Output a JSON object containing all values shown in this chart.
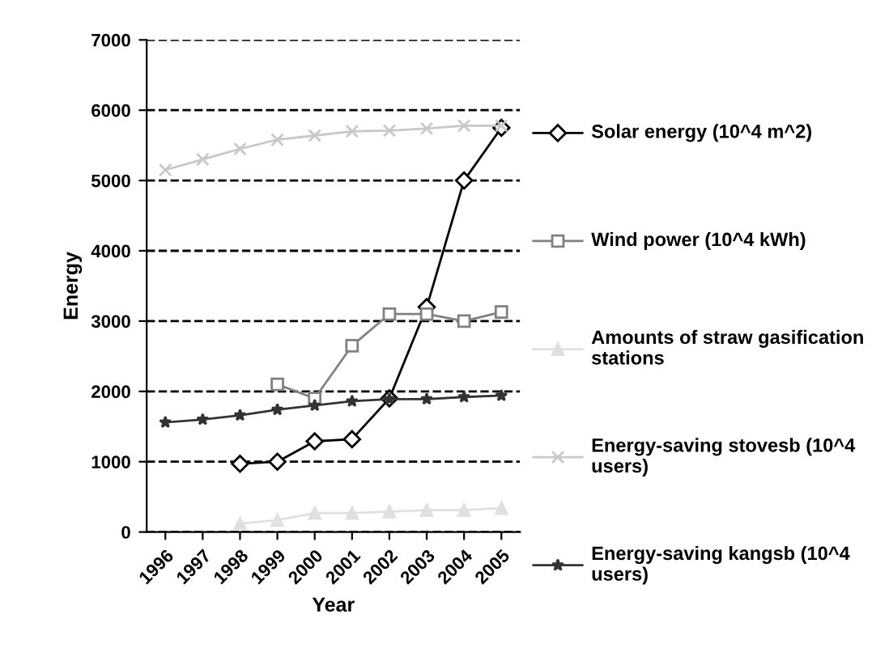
{
  "chart_data": {
    "type": "line",
    "xlabel": "Year",
    "ylabel": "Energy",
    "categories": [
      "1996",
      "1997",
      "1998",
      "1999",
      "2000",
      "2001",
      "2002",
      "2003",
      "2004",
      "2005"
    ],
    "ylim": [
      0,
      7000
    ],
    "yticks": [
      0,
      1000,
      2000,
      3000,
      4000,
      5000,
      6000,
      7000
    ],
    "grid": "y",
    "legend": "right",
    "series": [
      {
        "name": "Solar energy (10^4 m^2)",
        "color": "#000000",
        "marker": "diamond",
        "values": [
          null,
          null,
          970,
          1000,
          1290,
          1320,
          1900,
          3200,
          5000,
          5750
        ]
      },
      {
        "name": "Wind power (10^4 kWh)",
        "color": "#808080",
        "marker": "square",
        "values": [
          null,
          null,
          null,
          2100,
          1900,
          2650,
          3100,
          3100,
          3000,
          3130
        ]
      },
      {
        "name": "Amounts of straw gasification stations",
        "color": "#e0e0e0",
        "marker": "triangle",
        "values": [
          null,
          null,
          120,
          170,
          270,
          270,
          290,
          310,
          310,
          340
        ]
      },
      {
        "name": "Energy-saving stovesb (10^4 users)",
        "color": "#c8c8c8",
        "marker": "cross",
        "values": [
          5150,
          5300,
          5450,
          5580,
          5640,
          5700,
          5710,
          5740,
          5780,
          5780
        ]
      },
      {
        "name": "Energy-saving kangsb (10^4 users)",
        "color": "#333333",
        "marker": "star",
        "values": [
          1560,
          1600,
          1660,
          1740,
          1800,
          1860,
          1890,
          1890,
          1920,
          1940
        ]
      }
    ]
  }
}
